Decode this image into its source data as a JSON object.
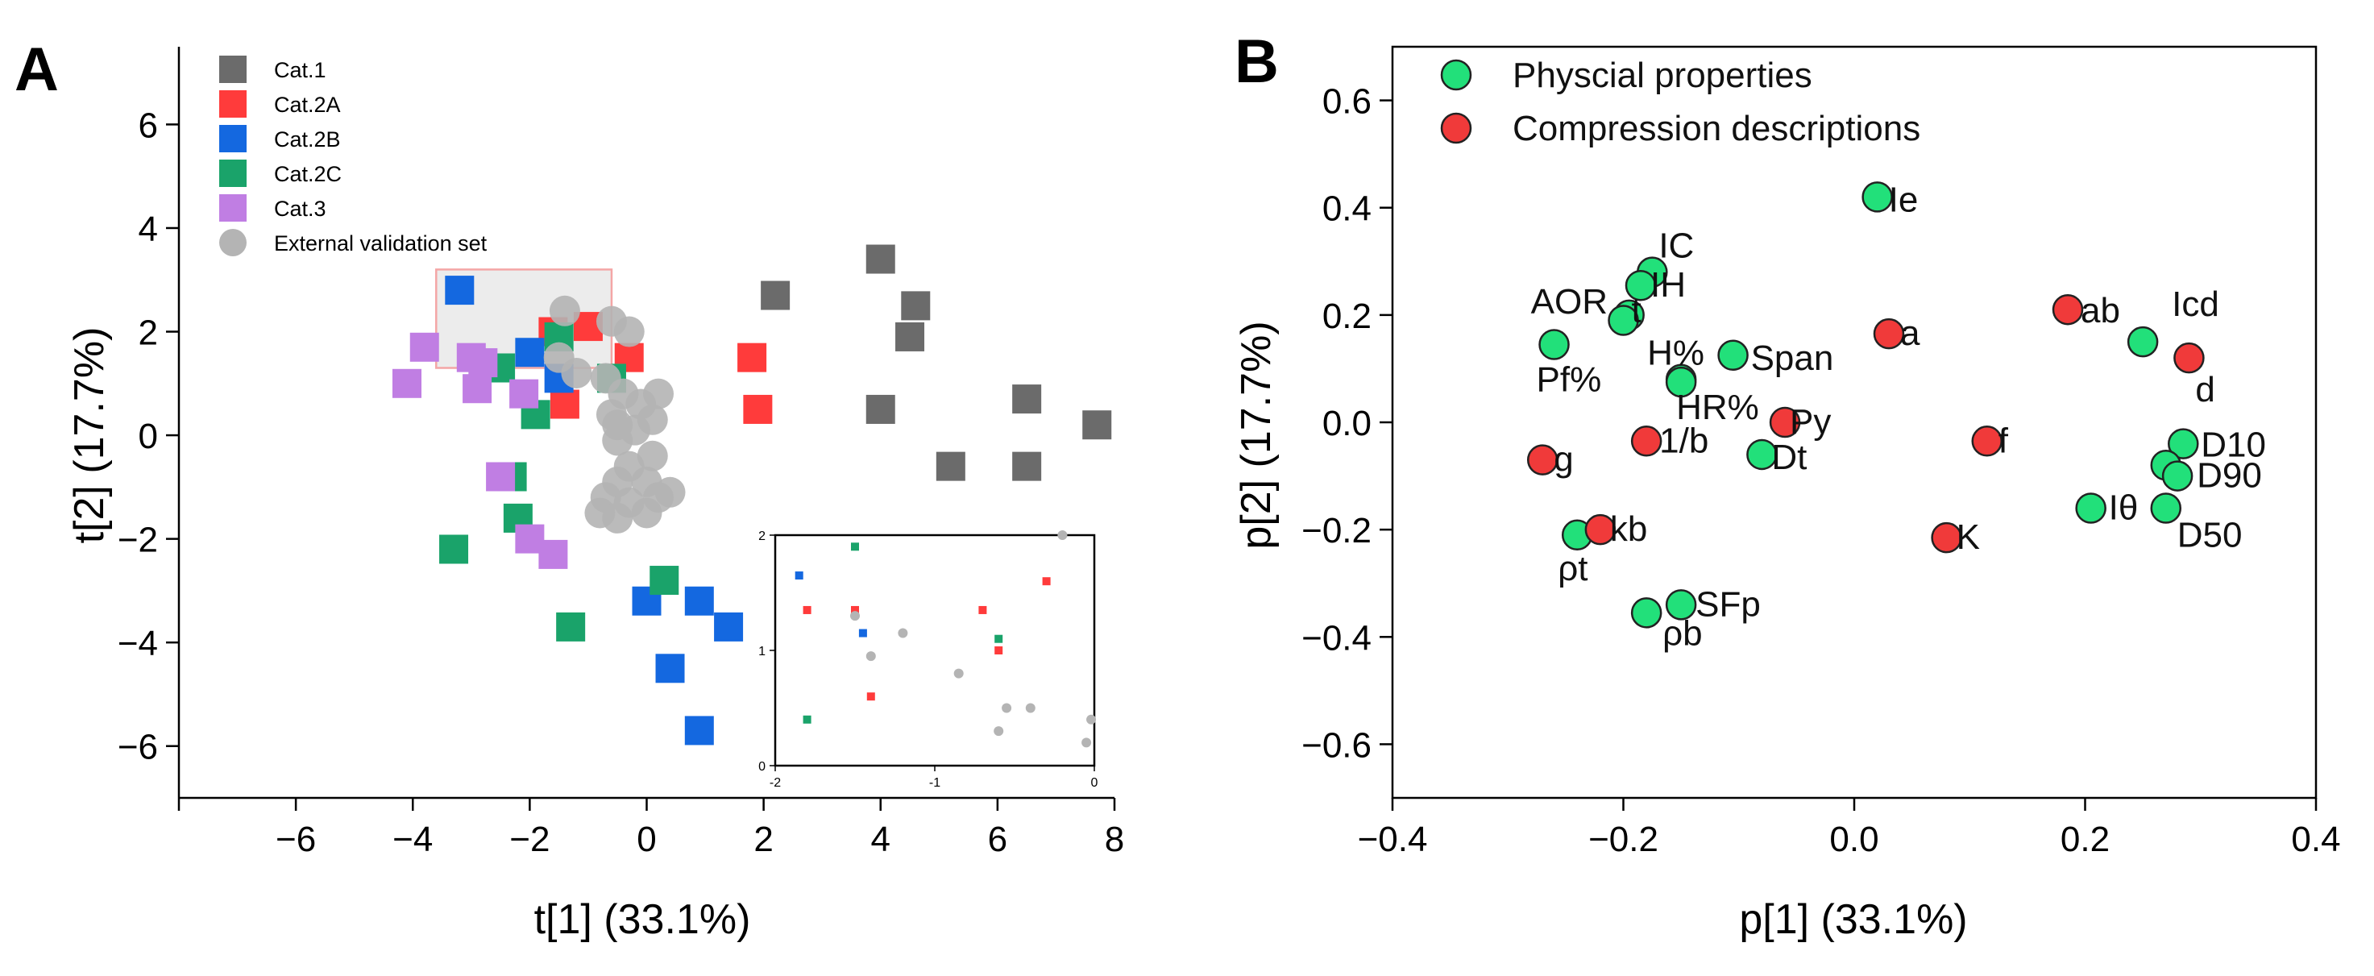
{
  "chart_data": [
    {
      "panel": "A",
      "type": "scatter",
      "xlabel": "t[1] (33.1%)",
      "ylabel": "t[2] (17.7%)",
      "xlim": [
        -8,
        8
      ],
      "ylim": [
        -7,
        7.5
      ],
      "xticks": [
        -6,
        -4,
        -2,
        0,
        2,
        4,
        6,
        8
      ],
      "yticks": [
        -6,
        -4,
        -2,
        0,
        2,
        4,
        6
      ],
      "legend_position": "top-left",
      "highlight_rect": [
        -3.6,
        1.3,
        -0.6,
        3.2
      ],
      "series": [
        {
          "name": "Cat.1",
          "color": "#6b6b6b",
          "marker": "square",
          "points": [
            [
              2.2,
              2.7
            ],
            [
              4.0,
              3.4
            ],
            [
              4.6,
              2.5
            ],
            [
              4.5,
              1.9
            ],
            [
              4.0,
              0.5
            ],
            [
              6.5,
              0.7
            ],
            [
              7.7,
              0.2
            ],
            [
              5.2,
              -0.6
            ],
            [
              6.5,
              -0.6
            ]
          ]
        },
        {
          "name": "Cat.2A",
          "color": "#ff3b3b",
          "marker": "square",
          "points": [
            [
              -1.6,
              2.0
            ],
            [
              -1.0,
              2.1
            ],
            [
              -0.3,
              1.5
            ],
            [
              -1.4,
              0.6
            ],
            [
              1.8,
              1.5
            ],
            [
              1.9,
              0.5
            ]
          ]
        },
        {
          "name": "Cat.2B",
          "color": "#1468e0",
          "marker": "square",
          "points": [
            [
              -3.2,
              2.8
            ],
            [
              -2.0,
              1.6
            ],
            [
              -1.5,
              1.1
            ],
            [
              0.0,
              -3.2
            ],
            [
              0.9,
              -3.2
            ],
            [
              1.4,
              -3.7
            ],
            [
              0.4,
              -4.5
            ],
            [
              0.9,
              -5.7
            ]
          ]
        },
        {
          "name": "Cat.2C",
          "color": "#1aa36a",
          "marker": "square",
          "points": [
            [
              -1.5,
              1.9
            ],
            [
              -2.5,
              1.3
            ],
            [
              -0.6,
              1.1
            ],
            [
              -1.9,
              0.4
            ],
            [
              -2.3,
              -0.8
            ],
            [
              -2.2,
              -1.6
            ],
            [
              -3.3,
              -2.2
            ],
            [
              0.3,
              -2.8
            ],
            [
              -1.3,
              -3.7
            ]
          ]
        },
        {
          "name": "Cat.3",
          "color": "#c07ee3",
          "marker": "square",
          "points": [
            [
              -3.8,
              1.7
            ],
            [
              -3.0,
              1.5
            ],
            [
              -2.8,
              1.4
            ],
            [
              -4.1,
              1.0
            ],
            [
              -2.9,
              0.9
            ],
            [
              -2.1,
              0.8
            ],
            [
              -2.5,
              -0.8
            ],
            [
              -2.0,
              -2.0
            ],
            [
              -1.6,
              -2.3
            ]
          ]
        },
        {
          "name": "External validation set",
          "color": "#b4b4b4",
          "marker": "circle",
          "points": [
            [
              -1.4,
              2.4
            ],
            [
              -0.6,
              2.2
            ],
            [
              -0.3,
              2.0
            ],
            [
              -1.5,
              1.5
            ],
            [
              -1.2,
              1.2
            ],
            [
              -0.7,
              1.1
            ],
            [
              -0.4,
              0.8
            ],
            [
              -0.6,
              0.4
            ],
            [
              -0.1,
              0.6
            ],
            [
              0.2,
              0.8
            ],
            [
              -0.5,
              0.2
            ],
            [
              -0.2,
              0.1
            ],
            [
              0.1,
              0.3
            ],
            [
              -0.5,
              -0.1
            ],
            [
              -0.3,
              -0.6
            ],
            [
              0.1,
              -0.4
            ],
            [
              -0.5,
              -0.9
            ],
            [
              0.0,
              -0.9
            ],
            [
              0.4,
              -1.1
            ],
            [
              -0.7,
              -1.2
            ],
            [
              -0.3,
              -1.3
            ],
            [
              0.2,
              -1.2
            ],
            [
              -0.8,
              -1.5
            ],
            [
              -0.5,
              -1.6
            ],
            [
              0.0,
              -1.5
            ]
          ]
        }
      ],
      "inset": {
        "xlim": [
          -2,
          0
        ],
        "ylim": [
          0,
          2
        ],
        "xticks": [
          -2,
          -1,
          0
        ],
        "xtick_labels": [
          "-2",
          "-1",
          "0"
        ],
        "yticks": [
          0,
          1,
          2
        ],
        "ytick_labels": [
          "0",
          "1",
          "2"
        ],
        "points": [
          {
            "x": -1.85,
            "y": 1.65,
            "series": "Cat.2B"
          },
          {
            "x": -1.8,
            "y": 1.35,
            "series": "Cat.2A"
          },
          {
            "x": -1.8,
            "y": 0.4,
            "series": "Cat.2C"
          },
          {
            "x": -1.5,
            "y": 1.9,
            "series": "Cat.2C"
          },
          {
            "x": -1.5,
            "y": 1.35,
            "series": "Cat.2A"
          },
          {
            "x": -1.45,
            "y": 1.15,
            "series": "Cat.2B"
          },
          {
            "x": -1.4,
            "y": 0.6,
            "series": "Cat.2A"
          },
          {
            "x": -1.5,
            "y": 1.3,
            "series": "External validation set"
          },
          {
            "x": -1.4,
            "y": 0.95,
            "series": "External validation set"
          },
          {
            "x": -1.2,
            "y": 1.15,
            "series": "External validation set"
          },
          {
            "x": -0.85,
            "y": 0.8,
            "series": "External validation set"
          },
          {
            "x": -0.7,
            "y": 1.35,
            "series": "Cat.2A"
          },
          {
            "x": -0.6,
            "y": 1.1,
            "series": "Cat.2C"
          },
          {
            "x": -0.6,
            "y": 1.0,
            "series": "Cat.2A"
          },
          {
            "x": -0.55,
            "y": 0.5,
            "series": "External validation set"
          },
          {
            "x": -0.4,
            "y": 0.5,
            "series": "External validation set"
          },
          {
            "x": -0.6,
            "y": 0.3,
            "series": "External validation set"
          },
          {
            "x": -0.3,
            "y": 1.6,
            "series": "Cat.2A"
          },
          {
            "x": -0.02,
            "y": 0.4,
            "series": "External validation set"
          },
          {
            "x": -0.05,
            "y": 0.2,
            "series": "External validation set"
          },
          {
            "x": -0.2,
            "y": 2.0,
            "series": "External validation set"
          }
        ]
      },
      "panel_label": "A"
    },
    {
      "panel": "B",
      "type": "scatter",
      "xlabel": "p[1]  (33.1%)",
      "ylabel": "p[2] (17.7%)",
      "xlim": [
        -0.4,
        0.4
      ],
      "ylim": [
        -0.7,
        0.7
      ],
      "xticks": [
        -0.4,
        -0.2,
        0.0,
        0.2,
        0.4
      ],
      "xtick_labels": [
        "−0.4",
        "−0.2",
        "0.0",
        "0.2",
        "0.4"
      ],
      "yticks": [
        -0.6,
        -0.4,
        -0.2,
        0.0,
        0.2,
        0.4,
        0.6
      ],
      "ytick_labels": [
        "−0.6",
        "−0.4",
        "−0.2",
        "0.0",
        "0.2",
        "0.4",
        "0.6"
      ],
      "legend_position": "top-left",
      "series": [
        {
          "name": "Physcial properties",
          "color": "#22e07a",
          "points": [
            {
              "x": 0.02,
              "y": 0.42,
              "label": "Ie",
              "dx": 14,
              "dy": 18
            },
            {
              "x": -0.175,
              "y": 0.28,
              "label": "IC",
              "dx": 8,
              "dy": -18
            },
            {
              "x": -0.185,
              "y": 0.255,
              "label": "IH",
              "dx": 12,
              "dy": 14
            },
            {
              "x": -0.195,
              "y": 0.2,
              "label": "AOR",
              "dx": -122,
              "dy": -2
            },
            {
              "x": -0.2,
              "y": 0.19,
              "label": "t",
              "dx": 10,
              "dy": 2
            },
            {
              "x": -0.26,
              "y": 0.145,
              "label": "Pf%",
              "dx": -22,
              "dy": 58
            },
            {
              "x": -0.105,
              "y": 0.125,
              "label": "Span",
              "dx": 22,
              "dy": 18
            },
            {
              "x": -0.15,
              "y": 0.08,
              "label": "H%",
              "dx": -42,
              "dy": -18
            },
            {
              "x": -0.15,
              "y": 0.075,
              "label": "HR%",
              "dx": -6,
              "dy": 46
            },
            {
              "x": -0.08,
              "y": -0.06,
              "label": "Dt",
              "dx": 12,
              "dy": 18
            },
            {
              "x": 0.25,
              "y": 0.15,
              "label": "Icd",
              "dx": 36,
              "dy": -32
            },
            {
              "x": 0.285,
              "y": -0.04,
              "label": "D10",
              "dx": 22,
              "dy": 16
            },
            {
              "x": 0.27,
              "y": -0.08,
              "label": "",
              "dx": 0,
              "dy": 0
            },
            {
              "x": 0.28,
              "y": -0.1,
              "label": "D90",
              "dx": 24,
              "dy": 14
            },
            {
              "x": 0.205,
              "y": -0.16,
              "label": "Iθ",
              "dx": 22,
              "dy": 14
            },
            {
              "x": 0.27,
              "y": -0.16,
              "label": "D50",
              "dx": 14,
              "dy": 48
            },
            {
              "x": -0.24,
              "y": -0.21,
              "label": "ρt",
              "dx": -24,
              "dy": 56
            },
            {
              "x": -0.15,
              "y": -0.34,
              "label": "SFp",
              "dx": 18,
              "dy": 14
            },
            {
              "x": -0.18,
              "y": -0.355,
              "label": "ρb",
              "dx": 20,
              "dy": 40
            }
          ]
        },
        {
          "name": "Compression descriptions",
          "color": "#f03a3a",
          "points": [
            {
              "x": 0.03,
              "y": 0.165,
              "label": "a",
              "dx": 14,
              "dy": 14
            },
            {
              "x": 0.185,
              "y": 0.21,
              "label": "ab",
              "dx": 16,
              "dy": 16
            },
            {
              "x": 0.29,
              "y": 0.12,
              "label": "d",
              "dx": 8,
              "dy": 54
            },
            {
              "x": -0.06,
              "y": 0.0,
              "label": "Py",
              "dx": 6,
              "dy": 14
            },
            {
              "x": -0.18,
              "y": -0.035,
              "label": "1/b",
              "dx": 16,
              "dy": 14
            },
            {
              "x": 0.115,
              "y": -0.035,
              "label": "f",
              "dx": 14,
              "dy": 14
            },
            {
              "x": -0.27,
              "y": -0.07,
              "label": "g",
              "dx": 14,
              "dy": 14
            },
            {
              "x": -0.22,
              "y": -0.2,
              "label": "kb",
              "dx": 12,
              "dy": 14
            },
            {
              "x": 0.08,
              "y": -0.215,
              "label": "K",
              "dx": 12,
              "dy": 14
            }
          ]
        }
      ],
      "panel_label": "B"
    }
  ]
}
